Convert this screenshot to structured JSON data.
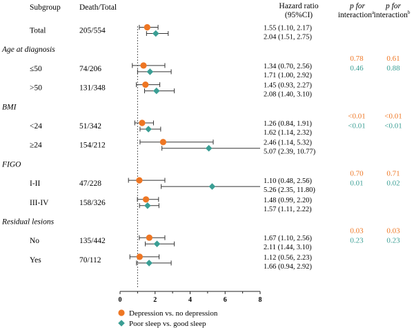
{
  "headers": {
    "subgroup": "Subgroup",
    "death_total": "Death/Total",
    "hr_line1": "Hazard ratio",
    "hr_line2": "(95%CI)",
    "p_a_line1": "p for",
    "p_a_line2": "interaction",
    "p_a_sup": "a",
    "p_b_line1": "p for",
    "p_b_line2": "interaction",
    "p_b_sup": "b"
  },
  "colors": {
    "depression": "#ee7623",
    "sleep": "#3a9e94",
    "reference_line": "#555555",
    "axis": "#222222"
  },
  "chart_data": {
    "type": "forest",
    "xlim": [
      0,
      8
    ],
    "x_ticks": [
      0,
      2,
      4,
      6,
      8
    ],
    "reference": 1,
    "series": [
      {
        "name": "Depression vs. no depression",
        "marker": "circle",
        "color": "#ee7623"
      },
      {
        "name": "Poor sleep vs. good sleep",
        "marker": "diamond",
        "color": "#3a9e94"
      }
    ],
    "rows": [
      {
        "kind": "item",
        "label": "Total",
        "death_total": "205/554",
        "estimates": [
          {
            "hr": 1.55,
            "lo": 1.1,
            "hi": 2.17,
            "text": "1.55 (1.10, 2.17)"
          },
          {
            "hr": 2.04,
            "lo": 1.51,
            "hi": 2.75,
            "text": "2.04 (1.51, 2.75)"
          }
        ]
      },
      {
        "kind": "group",
        "label": "Age at diagnosis",
        "p_a": [
          "0.78",
          "0.46"
        ],
        "p_b": [
          "0.61",
          "0.88"
        ]
      },
      {
        "kind": "item",
        "label": "≤50",
        "death_total": "74/206",
        "estimates": [
          {
            "hr": 1.34,
            "lo": 0.7,
            "hi": 2.56,
            "text": "1.34 (0.70, 2.56)"
          },
          {
            "hr": 1.71,
            "lo": 1.0,
            "hi": 2.92,
            "text": "1.71 (1.00, 2.92)"
          }
        ]
      },
      {
        "kind": "item",
        "label": ">50",
        "death_total": "131/348",
        "estimates": [
          {
            "hr": 1.45,
            "lo": 0.93,
            "hi": 2.27,
            "text": "1.45 (0.93, 2.27)"
          },
          {
            "hr": 2.08,
            "lo": 1.4,
            "hi": 3.1,
            "text": "2.08 (1.40, 3.10)"
          }
        ]
      },
      {
        "kind": "group",
        "label": "BMI",
        "p_a": [
          "<0.01",
          "<0.01"
        ],
        "p_b": [
          "<0.01",
          "<0.01"
        ]
      },
      {
        "kind": "item",
        "label": "<24",
        "death_total": "51/342",
        "estimates": [
          {
            "hr": 1.26,
            "lo": 0.84,
            "hi": 1.91,
            "text": "1.26 (0.84, 1.91)"
          },
          {
            "hr": 1.62,
            "lo": 1.14,
            "hi": 2.32,
            "text": "1.62 (1.14, 2.32)"
          }
        ]
      },
      {
        "kind": "item",
        "label": "≥24",
        "death_total": "154/212",
        "estimates": [
          {
            "hr": 2.46,
            "lo": 1.14,
            "hi": 5.32,
            "text": "2.46 (1.14, 5.32)"
          },
          {
            "hr": 5.07,
            "lo": 2.39,
            "hi": 10.77,
            "text": "5.07 (2.39, 10.77)"
          }
        ]
      },
      {
        "kind": "group",
        "label": "FIGO",
        "p_a": [
          "0.70",
          "0.01"
        ],
        "p_b": [
          "0.71",
          "0.02"
        ]
      },
      {
        "kind": "item",
        "label": "I-II",
        "death_total": "47/228",
        "estimates": [
          {
            "hr": 1.1,
            "lo": 0.48,
            "hi": 2.56,
            "text": "1.10 (0.48, 2.56)"
          },
          {
            "hr": 5.26,
            "lo": 2.35,
            "hi": 11.8,
            "text": "5.26 (2.35, 11.80)"
          }
        ]
      },
      {
        "kind": "item",
        "label": "III-IV",
        "death_total": "158/326",
        "estimates": [
          {
            "hr": 1.48,
            "lo": 0.99,
            "hi": 2.2,
            "text": "1.48 (0.99, 2.20)"
          },
          {
            "hr": 1.57,
            "lo": 1.11,
            "hi": 2.22,
            "text": "1.57 (1.11, 2.22)"
          }
        ]
      },
      {
        "kind": "group",
        "label": "Residual lesions",
        "p_a": [
          "0.03",
          "0.23"
        ],
        "p_b": [
          "0.03",
          "0.23"
        ]
      },
      {
        "kind": "item",
        "label": "No",
        "death_total": "135/442",
        "estimates": [
          {
            "hr": 1.67,
            "lo": 1.1,
            "hi": 2.56,
            "text": "1.67 (1.10, 2.56)"
          },
          {
            "hr": 2.11,
            "lo": 1.44,
            "hi": 3.1,
            "text": "2.11 (1.44, 3.10)"
          }
        ]
      },
      {
        "kind": "item",
        "label": "Yes",
        "death_total": "70/112",
        "estimates": [
          {
            "hr": 1.12,
            "lo": 0.56,
            "hi": 2.23,
            "text": "1.12 (0.56, 2.23)"
          },
          {
            "hr": 1.66,
            "lo": 0.94,
            "hi": 2.92,
            "text": "1.66 (0.94, 2.92)"
          }
        ]
      }
    ]
  }
}
